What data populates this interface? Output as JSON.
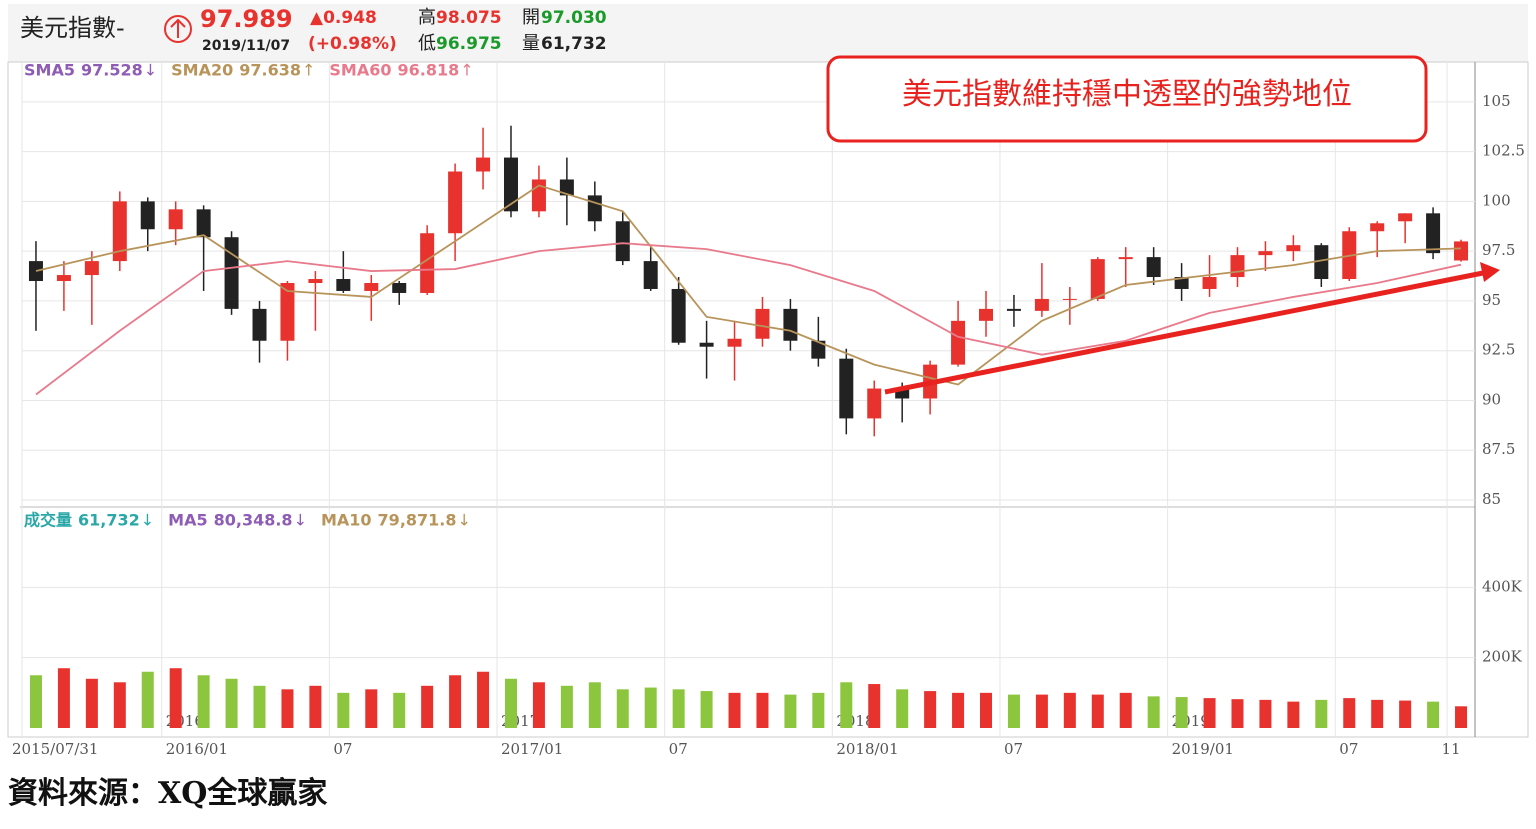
{
  "chart_data": {
    "type": "candlestick",
    "header": {
      "name": "美元指數-",
      "price": "97.989",
      "change": "▲0.948",
      "change_pct": "(+0.98%)",
      "date": "2019/11/07",
      "high_label": "高",
      "high": "98.075",
      "low_label": "低",
      "low": "96.975",
      "open_label": "開",
      "open": "97.030",
      "volume_label": "量",
      "volume": "61,732"
    },
    "indicators": [
      {
        "name": "SMA5",
        "value": 97.528,
        "arrow": "↓",
        "color": "#8e5bb5"
      },
      {
        "name": "SMA20",
        "value": 97.638,
        "arrow": "↑",
        "color": "#b8945a",
        "x": [
          0,
          3,
          6,
          9,
          12,
          15,
          18,
          21,
          24,
          27,
          30,
          33,
          36,
          39,
          42,
          45,
          48,
          51
        ],
        "values": [
          96.5,
          97.5,
          98.3,
          95.5,
          95.2,
          98,
          100.8,
          99.5,
          94.2,
          93.5,
          91.8,
          90.8,
          94,
          95.8,
          96.3,
          96.8,
          97.5,
          97.64
        ]
      },
      {
        "name": "SMA60",
        "value": 96.818,
        "arrow": "↑",
        "color": "#e87a8c",
        "x": [
          0,
          3,
          6,
          9,
          12,
          15,
          18,
          21,
          24,
          27,
          30,
          33,
          36,
          39,
          42,
          45,
          48,
          51
        ],
        "values": [
          90.3,
          93.5,
          96.5,
          97,
          96.5,
          96.6,
          97.5,
          97.9,
          97.6,
          96.8,
          95.5,
          93.2,
          92.3,
          93,
          94.4,
          95.2,
          95.9,
          96.82
        ]
      }
    ],
    "open": [
      97,
      96,
      96.3,
      97,
      100,
      98.6,
      99.6,
      98.2,
      94.6,
      93,
      95.9,
      96.1,
      95.5,
      95.9,
      95.4,
      98.4,
      101.5,
      102.2,
      99.5,
      101.1,
      100.3,
      99,
      97,
      95.6,
      92.9,
      92.7,
      93.1,
      94.6,
      93,
      92.1,
      89.1,
      90.6,
      90.1,
      91.8,
      94,
      94.6,
      94.5,
      95.1,
      95.1,
      97.1,
      97.2,
      96.2,
      95.6,
      96.2,
      97.3,
      97.5,
      97.8,
      96.1,
      98.5,
      99,
      99.4,
      97.03
    ],
    "high": [
      98,
      97,
      97.5,
      100.5,
      100.2,
      100,
      99.8,
      98.5,
      95,
      96,
      96.5,
      97.5,
      96.3,
      96,
      98.8,
      101.9,
      103.7,
      103.8,
      101.8,
      102.2,
      101,
      99.5,
      97.8,
      96.2,
      94,
      94,
      95.2,
      95.1,
      94.2,
      92.6,
      91,
      90.9,
      92,
      95,
      95.5,
      95.3,
      96.9,
      95.7,
      97.2,
      97.7,
      97.7,
      96.9,
      97.3,
      97.7,
      98,
      98.3,
      97.9,
      98.7,
      99,
      99.4,
      99.7,
      98.075
    ],
    "low": [
      93.5,
      94.5,
      93.8,
      96.5,
      97.5,
      97.8,
      95.5,
      94.3,
      91.9,
      92,
      93.5,
      95.4,
      94,
      94.8,
      95.3,
      97,
      100.6,
      99.2,
      99.2,
      98.8,
      98.5,
      96.8,
      95.5,
      92.8,
      91.1,
      91,
      92.7,
      92.5,
      91.7,
      88.3,
      88.2,
      88.9,
      89.3,
      91.7,
      93.2,
      93.7,
      94.2,
      93.8,
      95,
      95.7,
      95.8,
      95,
      95.2,
      95.7,
      96.5,
      97,
      95.7,
      96,
      97.2,
      97.9,
      97.1,
      96.975
    ],
    "close": [
      96,
      96.3,
      97,
      100,
      98.6,
      99.6,
      98.2,
      94.6,
      93,
      95.9,
      96.1,
      95.5,
      95.9,
      95.4,
      98.4,
      101.5,
      102.2,
      99.5,
      101.1,
      100.3,
      99,
      97,
      95.6,
      92.9,
      92.7,
      93.1,
      94.6,
      93,
      92.1,
      89.1,
      90.6,
      90.1,
      91.8,
      94,
      94.6,
      94.5,
      95.1,
      95.1,
      97.1,
      97.2,
      96.2,
      95.6,
      96.2,
      97.3,
      97.5,
      97.8,
      96.1,
      98.5,
      98.9,
      99.4,
      97.4,
      97.989
    ],
    "up_color": "#e8322e",
    "down_color": "#222222",
    "ylim": [
      84.75,
      107
    ],
    "yticks": [
      85,
      87.5,
      90,
      92.5,
      95,
      97.5,
      100,
      102.5,
      105
    ],
    "grid": true,
    "xticks": [
      {
        "value": 0,
        "label": "2015/07/31"
      },
      {
        "value": 5,
        "label": "2016/01"
      },
      {
        "value": 11,
        "label": "07"
      },
      {
        "value": 17,
        "label": "2017/01"
      },
      {
        "value": 23,
        "label": "07"
      },
      {
        "value": 29,
        "label": "2018/01"
      },
      {
        "value": 35,
        "label": "07"
      },
      {
        "value": 41,
        "label": "2019/01"
      },
      {
        "value": 47,
        "label": "07"
      },
      {
        "value": 51,
        "label": "11"
      }
    ],
    "year_labels": [
      {
        "value": 5,
        "label": "2016"
      },
      {
        "value": 17,
        "label": "2017"
      },
      {
        "value": 29,
        "label": "2018"
      },
      {
        "value": 41,
        "label": "2019"
      }
    ],
    "annotation": "美元指數維持穩中透堅的強勢地位",
    "volume": {
      "legend": [
        {
          "name": "成交量",
          "value": "61,732",
          "arrow": "↓",
          "color": "#2aa7a7"
        },
        {
          "name": "MA5",
          "value": "80,348.8",
          "arrow": "↓",
          "color": "#8e5bb5"
        },
        {
          "name": "MA10",
          "value": "79,871.8",
          "arrow": "↓",
          "color": "#b8945a"
        }
      ],
      "values": [
        150000,
        170000,
        140000,
        130000,
        160000,
        170000,
        150000,
        140000,
        120000,
        110000,
        120000,
        100000,
        110000,
        100000,
        120000,
        150000,
        160000,
        140000,
        130000,
        120000,
        130000,
        110000,
        115000,
        110000,
        105000,
        100000,
        100000,
        95000,
        100000,
        130000,
        125000,
        110000,
        105000,
        100000,
        100000,
        95000,
        95000,
        100000,
        95000,
        100000,
        90000,
        88000,
        85000,
        82000,
        80000,
        75000,
        80000,
        85000,
        80000,
        78000,
        75000,
        61732
      ],
      "up_color": "#e8322e",
      "down_color": "#8cc63f",
      "ylim": [
        0,
        620000
      ],
      "yticks": [
        {
          "value": 200000,
          "label": "200K"
        },
        {
          "value": 400000,
          "label": "400K"
        }
      ]
    },
    "source": "資料來源：XQ全球贏家"
  }
}
